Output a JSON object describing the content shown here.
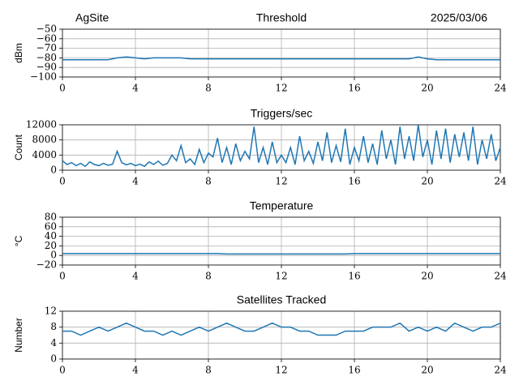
{
  "chart_data": [
    {
      "type": "line",
      "site": "AgSite",
      "title": "Threshold",
      "date": "2025/03/06",
      "ylabel": "dBm",
      "color": "#1f77b4",
      "grid": true,
      "xlim": [
        0,
        24
      ],
      "xticks": [
        0,
        4,
        8,
        12,
        16,
        20,
        24
      ],
      "ylim": [
        -100,
        -50
      ],
      "yticks": [
        {
          "value": -50,
          "label": "−50"
        },
        {
          "value": -60,
          "label": "−60"
        },
        {
          "value": -70,
          "label": "−70"
        },
        {
          "value": -80,
          "label": "−80"
        },
        {
          "value": -90,
          "label": "−90"
        },
        {
          "value": -100,
          "label": "−100"
        }
      ],
      "x": [
        0,
        0.5,
        1,
        1.5,
        2,
        2.5,
        3,
        3.5,
        4,
        4.5,
        5,
        5.5,
        6,
        6.5,
        7,
        7.5,
        8,
        8.5,
        9,
        9.5,
        10,
        10.5,
        11,
        11.5,
        12,
        12.5,
        13,
        13.5,
        14,
        14.5,
        15,
        15.5,
        16,
        16.5,
        17,
        17.5,
        18,
        18.5,
        19,
        19.5,
        20,
        20.5,
        21,
        21.5,
        22,
        22.5,
        23,
        23.5,
        24
      ],
      "values": [
        -82,
        -82,
        -82,
        -82,
        -82,
        -82,
        -80,
        -79,
        -80,
        -81,
        -80,
        -80,
        -80,
        -80,
        -81,
        -81,
        -81,
        -81,
        -81,
        -81,
        -81,
        -81,
        -81,
        -81,
        -81,
        -81,
        -81,
        -81,
        -81,
        -81,
        -81,
        -81,
        -81,
        -81,
        -81,
        -81,
        -81,
        -81,
        -81,
        -79,
        -81,
        -82,
        -82,
        -82,
        -82,
        -82,
        -82,
        -82,
        -82
      ]
    },
    {
      "type": "line",
      "title": "Triggers/sec",
      "ylabel": "Count",
      "color": "#1f77b4",
      "grid": true,
      "xlim": [
        0,
        24
      ],
      "xticks": [
        0,
        4,
        8,
        12,
        16,
        20,
        24
      ],
      "ylim": [
        0,
        12000
      ],
      "yticks": [
        0,
        4000,
        8000,
        12000
      ],
      "x": [
        0,
        0.25,
        0.5,
        0.75,
        1,
        1.25,
        1.5,
        1.75,
        2,
        2.25,
        2.5,
        2.75,
        3,
        3.25,
        3.5,
        3.75,
        4,
        4.25,
        4.5,
        4.75,
        5,
        5.25,
        5.5,
        5.75,
        6,
        6.25,
        6.5,
        6.75,
        7,
        7.25,
        7.5,
        7.75,
        8,
        8.25,
        8.5,
        8.75,
        9,
        9.25,
        9.5,
        9.75,
        10,
        10.25,
        10.5,
        10.75,
        11,
        11.25,
        11.5,
        11.75,
        12,
        12.25,
        12.5,
        12.75,
        13,
        13.25,
        13.5,
        13.75,
        14,
        14.25,
        14.5,
        14.75,
        15,
        15.25,
        15.5,
        15.75,
        16,
        16.25,
        16.5,
        16.75,
        17,
        17.25,
        17.5,
        17.75,
        18,
        18.25,
        18.5,
        18.75,
        19,
        19.25,
        19.5,
        19.75,
        20,
        20.25,
        20.5,
        20.75,
        21,
        21.25,
        21.5,
        21.75,
        22,
        22.25,
        22.5,
        22.75,
        23,
        23.25,
        23.5,
        23.75,
        24
      ],
      "values": [
        2500,
        1500,
        2000,
        1200,
        1800,
        1000,
        2200,
        1500,
        1200,
        1800,
        1300,
        1600,
        5000,
        2000,
        1400,
        1800,
        1200,
        1600,
        1000,
        2200,
        1500,
        2400,
        1300,
        1800,
        4000,
        2500,
        6500,
        2000,
        3000,
        1500,
        5500,
        2000,
        4500,
        3500,
        8500,
        2000,
        6000,
        1500,
        7000,
        2500,
        5000,
        3000,
        11500,
        2000,
        6000,
        1500,
        7500,
        2000,
        4000,
        2000,
        6000,
        1500,
        9000,
        2500,
        5000,
        1800,
        7500,
        2500,
        10000,
        2000,
        6500,
        2200,
        11000,
        1500,
        6000,
        2500,
        9000,
        2000,
        7000,
        1500,
        10500,
        3000,
        8000,
        1500,
        11500,
        3000,
        9000,
        2500,
        12000,
        3500,
        8000,
        1500,
        10500,
        3000,
        11000,
        2000,
        9500,
        3500,
        10000,
        2500,
        11500,
        1500,
        8000,
        3000,
        9500,
        2500,
        6000
      ]
    },
    {
      "type": "line",
      "title": "Temperature",
      "ylabel": "°C",
      "color": "#1f77b4",
      "grid": true,
      "xlim": [
        0,
        24
      ],
      "xticks": [
        0,
        4,
        8,
        12,
        16,
        20,
        24
      ],
      "ylim": [
        -20,
        80
      ],
      "yticks": [
        80,
        60,
        40,
        20,
        0,
        {
          "value": -20,
          "label": "−20"
        }
      ],
      "x": [
        0,
        0.5,
        1,
        1.5,
        2,
        2.5,
        3,
        3.5,
        4,
        4.5,
        5,
        5.5,
        6,
        6.5,
        7,
        7.5,
        8,
        8.5,
        9,
        9.5,
        10,
        10.5,
        11,
        11.5,
        12,
        12.5,
        13,
        13.5,
        14,
        14.5,
        15,
        15.5,
        16,
        16.5,
        17,
        17.5,
        18,
        18.5,
        19,
        19.5,
        20,
        20.5,
        21,
        21.5,
        22,
        22.5,
        23,
        23.5,
        24
      ],
      "values": [
        4,
        4,
        4,
        4,
        4,
        4,
        4,
        4,
        4,
        4,
        4,
        4,
        4,
        4,
        4,
        4,
        4,
        4,
        3,
        3,
        3,
        3,
        3,
        3,
        3,
        3,
        3,
        3,
        3,
        3,
        3,
        3,
        4,
        4,
        4,
        4,
        4,
        4,
        4,
        4,
        4,
        4,
        4,
        4,
        4,
        4,
        4,
        4,
        4
      ]
    },
    {
      "type": "line",
      "title": "Satellites Tracked",
      "ylabel": "Number",
      "color": "#1f77b4",
      "grid": true,
      "xlim": [
        0,
        24
      ],
      "xticks": [
        0,
        4,
        8,
        12,
        16,
        20,
        24
      ],
      "ylim": [
        0,
        12
      ],
      "yticks": [
        0,
        4,
        8,
        12
      ],
      "x": [
        0,
        0.5,
        1,
        1.5,
        2,
        2.5,
        3,
        3.5,
        4,
        4.5,
        5,
        5.5,
        6,
        6.5,
        7,
        7.5,
        8,
        8.5,
        9,
        9.5,
        10,
        10.5,
        11,
        11.5,
        12,
        12.5,
        13,
        13.5,
        14,
        14.5,
        15,
        15.5,
        16,
        16.5,
        17,
        17.5,
        18,
        18.5,
        19,
        19.5,
        20,
        20.5,
        21,
        21.5,
        22,
        22.5,
        23,
        23.5,
        24
      ],
      "values": [
        7,
        7,
        6,
        7,
        8,
        7,
        8,
        9,
        8,
        7,
        7,
        6,
        7,
        6,
        7,
        8,
        7,
        8,
        9,
        8,
        7,
        7,
        8,
        9,
        8,
        8,
        7,
        7,
        6,
        6,
        6,
        7,
        7,
        7,
        8,
        8,
        8,
        9,
        7,
        8,
        7,
        8,
        7,
        9,
        8,
        7,
        8,
        8,
        9
      ]
    }
  ]
}
